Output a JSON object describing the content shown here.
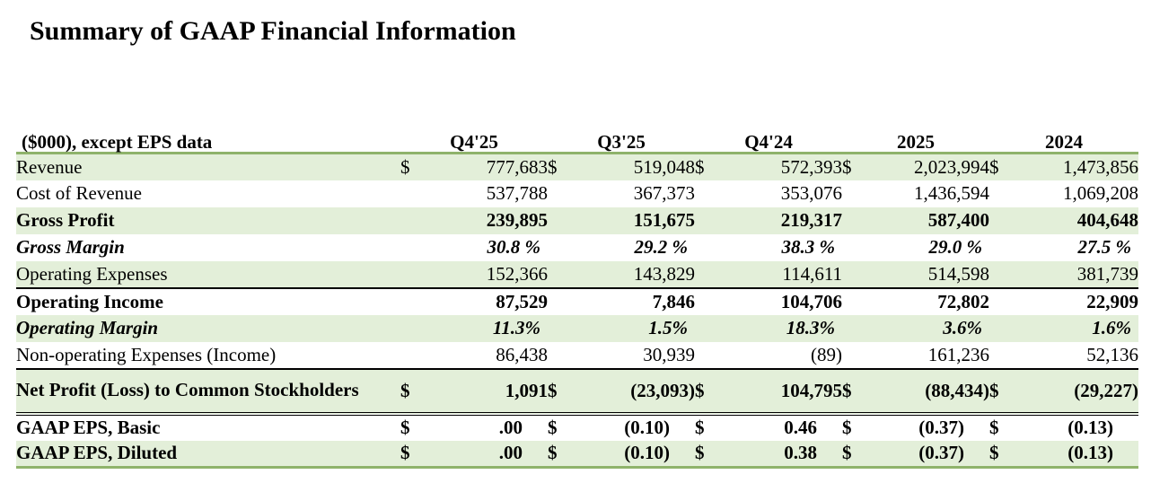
{
  "title": "Summary of GAAP Financial Information",
  "table": {
    "label_header": "($000), except EPS data",
    "columns": [
      "Q4'25",
      "Q3'25",
      "Q4'24",
      "2025",
      "2024"
    ],
    "currency_symbol": "$",
    "rows": [
      {
        "label": "Revenue",
        "values": [
          "777,683",
          "519,048",
          "572,393",
          "2,023,994",
          "1,473,856"
        ]
      },
      {
        "label": "Cost of Revenue",
        "values": [
          "537,788",
          "367,373",
          "353,076",
          "1,436,594",
          "1,069,208"
        ]
      },
      {
        "label": "Gross Profit",
        "values": [
          "239,895",
          "151,675",
          "219,317",
          "587,400",
          "404,648"
        ]
      },
      {
        "label": "Gross Margin",
        "values": [
          "30.8 %",
          "29.2 %",
          "38.3 %",
          "29.0 %",
          "27.5 %"
        ]
      },
      {
        "label": "Operating Expenses",
        "values": [
          "152,366",
          "143,829",
          "114,611",
          "514,598",
          "381,739"
        ]
      },
      {
        "label": "Operating Income",
        "values": [
          "87,529",
          "7,846",
          "104,706",
          "72,802",
          "22,909"
        ]
      },
      {
        "label": "Operating Margin",
        "values": [
          "11.3%",
          "1.5%",
          "18.3%",
          "3.6%",
          "1.6%"
        ]
      },
      {
        "label": "Non-operating Expenses (Income)",
        "values": [
          "86,438",
          "30,939",
          "(89)",
          "161,236",
          "52,136"
        ]
      },
      {
        "label": "Net Profit (Loss) to Common Stockholders",
        "values": [
          "1,091",
          "(23,093)",
          "104,795",
          "(88,434)",
          "(29,227)"
        ]
      },
      {
        "label": "GAAP EPS, Basic",
        "values": [
          ".00",
          "(0.10)",
          "0.46",
          "(0.37)",
          "(0.13)"
        ]
      },
      {
        "label": "GAAP EPS, Diluted",
        "values": [
          ".00",
          "(0.10)",
          "0.38",
          "(0.37)",
          "(0.13)"
        ]
      }
    ]
  }
}
